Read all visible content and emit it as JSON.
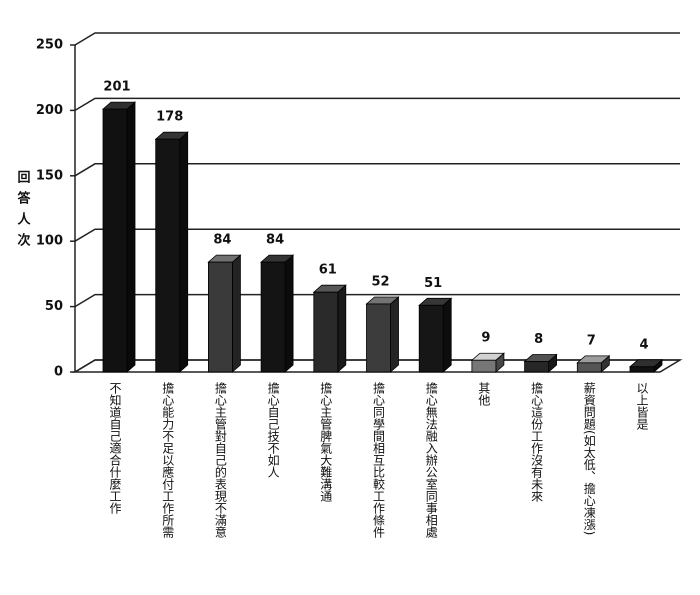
{
  "chart_data": {
    "type": "bar",
    "y_label": "回答人次",
    "categories": [
      "不知道自己適合什麼工作",
      "擔心能力不足以應付工作所需",
      "擔心主管對自己的表現不滿意",
      "擔心自己技不如人",
      "擔心主管脾氣大難溝通",
      "擔心同學間相互比較工作條件",
      "擔心無法融入辦公室同事相處",
      "其他",
      "擔心這份工作沒有未來",
      "薪資問題(如太低、擔心凍漲)",
      "以上皆是"
    ],
    "values": [
      201,
      178,
      84,
      84,
      61,
      52,
      51,
      9,
      8,
      7,
      4
    ],
    "colors": [
      "#111111",
      "#141414",
      "#3a3a3a",
      "#141414",
      "#2a2a2a",
      "#3c3c3c",
      "#161616",
      "#777777",
      "#262626",
      "#555555",
      "#111111"
    ],
    "ylim": [
      0,
      250
    ],
    "yticks": [
      0,
      50,
      100,
      150,
      200,
      250
    ],
    "grid": true
  }
}
